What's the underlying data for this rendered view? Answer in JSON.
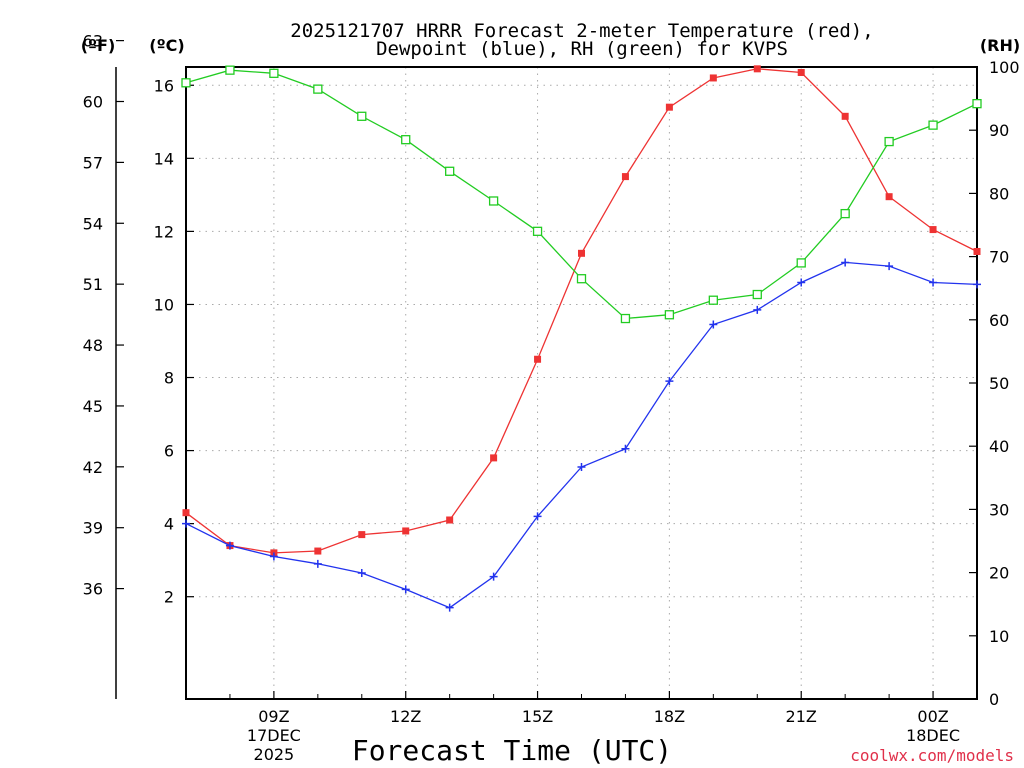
{
  "chart_data": {
    "type": "line",
    "title_line1": "2025121707 HRRR Forecast 2-meter Temperature (red),",
    "title_line2": "Dewpoint (blue), RH (green) for KVPS",
    "xlabel": "Forecast Time (UTC)",
    "credit": "coolwx.com/models",
    "unit_f": "(ºF)",
    "unit_c": "(ºC)",
    "unit_rh": "(RH)",
    "x": [
      7,
      8,
      9,
      10,
      11,
      12,
      13,
      14,
      15,
      16,
      17,
      18,
      19,
      20,
      21,
      22,
      23,
      24,
      25
    ],
    "xlim": [
      7,
      25
    ],
    "x_ticks": [
      {
        "x": 9,
        "label": "09Z",
        "line2": "17DEC",
        "line3": "2025"
      },
      {
        "x": 12,
        "label": "12Z"
      },
      {
        "x": 15,
        "label": "15Z"
      },
      {
        "x": 18,
        "label": "18Z"
      },
      {
        "x": 21,
        "label": "21Z"
      },
      {
        "x": 24,
        "label": "00Z",
        "line2": "18DEC"
      }
    ],
    "left_axis_c": {
      "range": [
        -0.8,
        16.5
      ],
      "ticks": [
        2,
        4,
        6,
        8,
        10,
        12,
        14,
        16
      ],
      "labels": [
        "2",
        "4",
        "6",
        "8",
        "10",
        "12",
        "14",
        "16"
      ]
    },
    "left_axis_f": {
      "ticks": [
        36,
        39,
        42,
        45,
        48,
        51,
        54,
        57,
        60,
        63
      ],
      "labels": [
        "36",
        "39",
        "42",
        "45",
        "48",
        "51",
        "54",
        "57",
        "60",
        "63"
      ]
    },
    "right_axis_rh": {
      "range": [
        0,
        100
      ],
      "ticks": [
        0,
        10,
        20,
        30,
        40,
        50,
        60,
        70,
        80,
        90,
        100
      ],
      "labels": [
        "0",
        "10",
        "20",
        "30",
        "40",
        "50",
        "60",
        "70",
        "80",
        "90",
        "100"
      ]
    },
    "series": [
      {
        "name": "2-meter Temperature",
        "axis": "c",
        "color": "#ee3333",
        "marker": "filled-square",
        "values": [
          4.3,
          3.4,
          3.2,
          3.25,
          3.7,
          3.8,
          4.1,
          5.8,
          8.5,
          11.4,
          13.5,
          15.4,
          16.2,
          16.45,
          16.35,
          15.15,
          12.95,
          12.05,
          11.45
        ]
      },
      {
        "name": "Dewpoint",
        "axis": "c",
        "color": "#2233ee",
        "marker": "plus",
        "values": [
          4.0,
          3.4,
          3.1,
          2.9,
          2.65,
          2.2,
          1.7,
          2.55,
          4.2,
          5.55,
          6.05,
          7.9,
          9.45,
          9.85,
          10.6,
          11.15,
          11.05,
          10.6,
          10.55
        ]
      },
      {
        "name": "RH",
        "axis": "rh",
        "color": "#22cc22",
        "marker": "open-square",
        "values": [
          97.5,
          99.5,
          99,
          96.5,
          92.2,
          88.5,
          83.5,
          78.8,
          74,
          66.5,
          60.2,
          60.8,
          63.1,
          64,
          69,
          76.8,
          88.2,
          90.8,
          94.2
        ]
      }
    ]
  }
}
